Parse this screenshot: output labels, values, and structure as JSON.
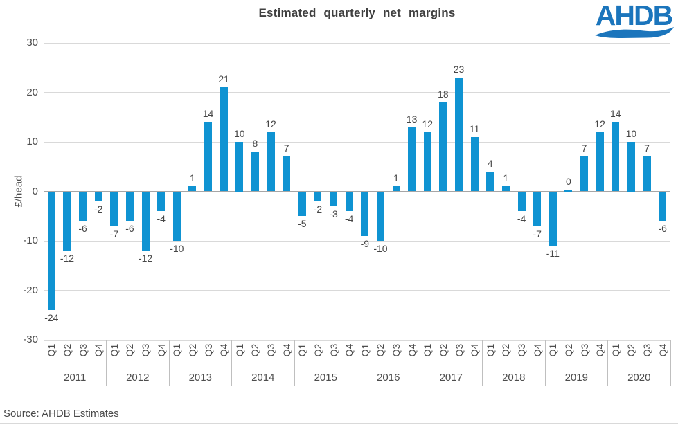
{
  "title": "Estimated  quarterly  net  margins",
  "logo": {
    "text": "AHDB",
    "color": "#1b75bc"
  },
  "source": "Source: AHDB Estimates",
  "colors": {
    "bar": "#0f93d2",
    "gridline": "#d9d9d9",
    "zero_line": "#a6a6a6",
    "separator": "#bfbfbf",
    "text": "#4d4d4d",
    "title_text": "#404040"
  },
  "chart_data": {
    "type": "bar",
    "title": "Estimated quarterly net margins",
    "xlabel": "",
    "ylabel": "£/head",
    "ylim": [
      -30,
      30
    ],
    "yticks": [
      30,
      20,
      10,
      0,
      -10,
      -20,
      -30
    ],
    "grid": true,
    "legend": "none",
    "quarters": [
      "Q1",
      "Q2",
      "Q3",
      "Q4"
    ],
    "groups": [
      {
        "year": "2011",
        "values": [
          -24,
          -12,
          -6,
          -2
        ]
      },
      {
        "year": "2012",
        "values": [
          -7,
          -6,
          -12,
          -4
        ]
      },
      {
        "year": "2013",
        "values": [
          -10,
          1,
          14,
          21
        ]
      },
      {
        "year": "2014",
        "values": [
          10,
          8,
          12,
          7
        ]
      },
      {
        "year": "2015",
        "values": [
          -5,
          -2,
          -3,
          -4
        ]
      },
      {
        "year": "2016",
        "values": [
          -9,
          -10,
          1,
          13
        ]
      },
      {
        "year": "2017",
        "values": [
          12,
          18,
          23,
          11
        ]
      },
      {
        "year": "2018",
        "values": [
          4,
          1,
          -4,
          -7
        ]
      },
      {
        "year": "2019",
        "values": [
          -11,
          0,
          7,
          12
        ]
      },
      {
        "year": "2020",
        "values": [
          14,
          10,
          7,
          -6
        ]
      }
    ]
  }
}
